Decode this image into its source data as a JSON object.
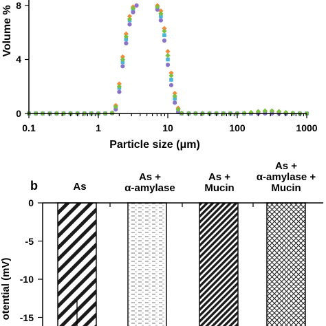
{
  "chart_data": [
    {
      "type": "scatter",
      "xscale": "log",
      "xlim": [
        0.1,
        1000
      ],
      "ylim": [
        0,
        8
      ],
      "xlabel": "Particle size (μm)",
      "ylabel": "Volume %",
      "x_ticks": [
        0.1,
        1,
        10,
        100,
        1000
      ],
      "x_tick_labels": [
        "0.1",
        "1",
        "10",
        "100",
        "1000"
      ],
      "y_ticks": [
        0,
        4,
        8
      ],
      "y_tick_labels": [
        "0",
        "4",
        "8"
      ],
      "grid": false,
      "legend": "none",
      "series": [
        {
          "marker": "diamond",
          "color": "#f28b3c",
          "x": [
            0.1,
            0.126,
            0.158,
            0.2,
            0.251,
            0.316,
            0.398,
            0.501,
            0.631,
            0.794,
            1.0,
            1.26,
            1.58,
            1.78,
            2.0,
            2.24,
            2.51,
            2.82,
            3.16,
            3.55,
            3.98,
            4.47,
            5.01,
            5.62,
            6.31,
            7.08,
            7.94,
            8.91,
            10.0,
            11.2,
            12.6,
            14.1,
            15.8,
            20,
            25.1,
            31.6,
            39.8,
            50.1,
            63.1,
            79.4,
            100,
            126,
            158,
            200,
            251,
            316,
            398,
            501,
            631,
            794,
            1000
          ],
          "values": [
            0,
            0,
            0,
            0,
            0,
            0,
            0,
            0,
            0,
            0,
            0,
            0,
            0.05,
            0.6,
            2.2,
            4.2,
            5.9,
            7.2,
            7.9,
            8.1,
            8.1,
            8.1,
            8.1,
            8.1,
            8.1,
            8.0,
            7.6,
            6.3,
            4.6,
            3.0,
            1.5,
            0.4,
            0.03,
            0,
            0,
            0,
            0,
            0,
            0,
            0,
            0,
            0,
            0.05,
            0.1,
            0.15,
            0.15,
            0.1,
            0.05,
            0,
            0,
            0
          ]
        },
        {
          "marker": "square",
          "color": "#4fb5d8",
          "x": [
            0.1,
            0.126,
            0.158,
            0.2,
            0.251,
            0.316,
            0.398,
            0.501,
            0.631,
            0.794,
            1.0,
            1.26,
            1.58,
            1.78,
            2.0,
            2.24,
            2.51,
            2.82,
            3.16,
            3.55,
            3.98,
            4.47,
            5.01,
            5.62,
            6.31,
            7.08,
            7.94,
            8.91,
            10.0,
            11.2,
            12.6,
            14.1,
            15.8,
            20,
            25.1,
            31.6,
            39.8,
            50.1,
            63.1,
            79.4,
            100,
            126,
            158,
            200,
            251,
            316,
            398,
            501,
            631,
            794,
            1000
          ],
          "values": [
            0,
            0,
            0,
            0,
            0,
            0,
            0,
            0,
            0,
            0,
            0,
            0,
            0.03,
            0.4,
            1.9,
            3.8,
            5.5,
            6.9,
            7.7,
            8.1,
            8.1,
            8.1,
            8.1,
            8.1,
            8.1,
            7.8,
            7.2,
            5.8,
            4.0,
            2.5,
            1.1,
            0.2,
            0,
            0,
            0,
            0,
            0,
            0,
            0,
            0,
            0,
            0,
            0,
            0.03,
            0.05,
            0.05,
            0.03,
            0,
            0,
            0,
            0
          ]
        },
        {
          "marker": "circle",
          "color": "#8a74c8",
          "x": [
            0.1,
            0.126,
            0.158,
            0.2,
            0.251,
            0.316,
            0.398,
            0.501,
            0.631,
            0.794,
            1.0,
            1.26,
            1.58,
            1.78,
            2.0,
            2.24,
            2.51,
            2.82,
            3.16,
            3.55,
            3.98,
            4.47,
            5.01,
            5.62,
            6.31,
            7.08,
            7.94,
            8.91,
            10.0,
            11.2,
            12.6,
            14.1,
            15.8,
            20,
            25.1,
            31.6,
            39.8,
            50.1,
            63.1,
            79.4,
            100,
            126,
            158,
            200,
            251,
            316,
            398,
            501,
            631,
            794,
            1000
          ],
          "values": [
            0,
            0,
            0,
            0,
            0,
            0,
            0,
            0,
            0,
            0,
            0,
            0,
            0.02,
            0.3,
            1.6,
            3.5,
            5.2,
            6.6,
            7.5,
            8.0,
            8.1,
            8.1,
            8.1,
            8.1,
            8.1,
            7.7,
            6.9,
            5.4,
            3.6,
            2.1,
            0.8,
            0.1,
            0,
            0,
            0,
            0,
            0,
            0,
            0,
            0,
            0,
            0,
            0,
            0,
            0,
            0,
            0,
            0,
            0,
            0,
            0
          ]
        },
        {
          "marker": "diamond",
          "color": "#7bc043",
          "x": [
            0.1,
            0.126,
            0.158,
            0.2,
            0.251,
            0.316,
            0.398,
            0.501,
            0.631,
            0.794,
            1.0,
            1.26,
            1.58,
            1.78,
            2.0,
            2.24,
            2.51,
            2.82,
            3.16,
            3.55,
            3.98,
            4.47,
            5.01,
            5.62,
            6.31,
            7.08,
            7.94,
            8.91,
            10.0,
            11.2,
            12.6,
            14.1,
            15.8,
            20,
            25.1,
            31.6,
            39.8,
            50.1,
            63.1,
            79.4,
            100,
            126,
            158,
            200,
            251,
            316,
            398,
            501,
            631,
            794,
            1000
          ],
          "values": [
            0,
            0,
            0,
            0,
            0,
            0,
            0,
            0,
            0,
            0,
            0,
            0,
            0.04,
            0.5,
            2.0,
            4.0,
            5.7,
            7.0,
            7.8,
            8.1,
            8.1,
            8.1,
            8.1,
            8.1,
            8.1,
            7.9,
            7.4,
            6.1,
            4.3,
            2.8,
            1.3,
            0.3,
            0.02,
            0,
            0,
            0,
            0,
            0,
            0,
            0,
            0,
            0.02,
            0.08,
            0.15,
            0.2,
            0.2,
            0.15,
            0.08,
            0.03,
            0,
            0
          ]
        }
      ]
    },
    {
      "type": "bar",
      "panel_label": "b",
      "categories": [
        "As",
        "As +\nα-amylase",
        "As +\nMucin",
        "As +\nα-amylase +\nMucin"
      ],
      "values": [
        -16.3,
        -16.3,
        -16.3,
        -16.3
      ],
      "ylabel": "Zeta potential (mV)",
      "ylabel_visible": "otential (mV)",
      "ylim": [
        -16.5,
        0
      ],
      "y_ticks": [
        0,
        -5,
        -10,
        -15
      ],
      "y_tick_labels": [
        "0",
        "-5",
        "-10",
        "-15"
      ],
      "error": [
        3.5,
        0,
        0,
        0
      ],
      "patterns": [
        "diagonal-wide",
        "dashes-dotted",
        "diagonal-dense",
        "crosshatch"
      ],
      "grid": false,
      "legend": "none"
    }
  ],
  "panel_a": {
    "xlabel": "Particle size (μm)",
    "ylabel": "Volume %",
    "x_tick_labels": [
      "0.1",
      "1",
      "10",
      "100",
      "1000"
    ],
    "y_tick_labels": [
      "0",
      "4",
      "8"
    ]
  },
  "panel_b": {
    "panel_label": "b",
    "cat1_line1": "As",
    "cat2_line1": "As +",
    "cat2_line2": "α-amylase",
    "cat3_line1": "As +",
    "cat3_line2": "Mucin",
    "cat4_line1": "As +",
    "cat4_line2": "α-amylase +",
    "cat4_line3": "Mucin",
    "ylabel": "otential (mV)",
    "y_tick_labels": [
      "0",
      "-5",
      "-10",
      "-15"
    ]
  }
}
